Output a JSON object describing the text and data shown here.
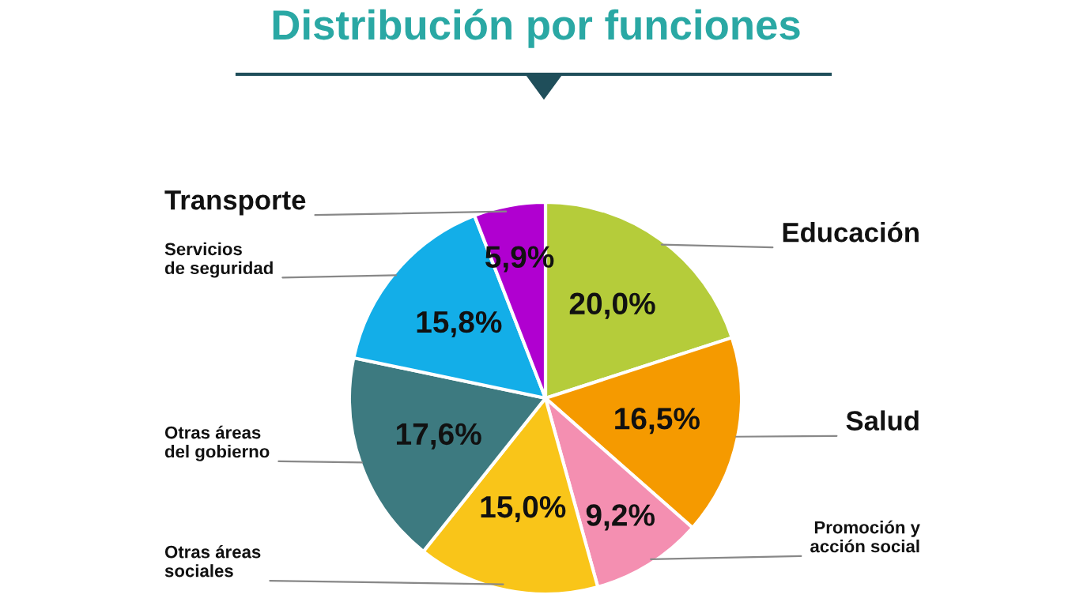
{
  "chart_data": {
    "type": "pie",
    "title": "Distribución por funciones",
    "categories": [
      "Educación",
      "Salud",
      "Promoción y\nacción social",
      "Otras áreas\nsociales",
      "Otras áreas\ndel gobierno",
      "Servicios\nde seguridad",
      "Transporte"
    ],
    "values": [
      20.0,
      16.5,
      9.2,
      15.0,
      17.6,
      15.8,
      5.9
    ],
    "value_labels": [
      "20,0%",
      "16,5%",
      "9,2%",
      "15,0%",
      "17,6%",
      "15,8%",
      "5,9%"
    ],
    "colors": [
      "#b5cc3a",
      "#f59a00",
      "#f48fb1",
      "#f9c519",
      "#3d7a80",
      "#13aee8",
      "#b000d0"
    ],
    "legend": false
  }
}
